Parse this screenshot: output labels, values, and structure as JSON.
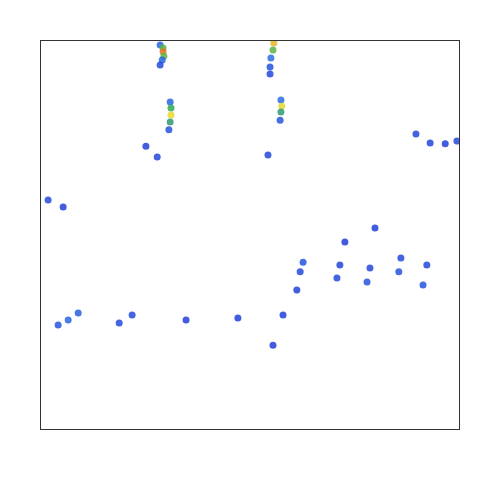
{
  "chart_data": {
    "type": "scatter",
    "x": [
      28.5,
      29.2,
      29.2,
      29.4,
      29.0,
      28.5,
      30.9,
      31.1,
      31.1,
      30.9,
      30.6,
      55.7,
      55.5,
      55.0,
      54.8,
      54.8,
      57.4,
      57.6,
      57.4,
      57.2,
      54.3,
      27.8,
      25.1,
      1.7,
      5.3,
      89.7,
      93.1,
      96.7,
      99.5,
      62.7,
      62.0,
      61.2,
      71.5,
      70.8,
      78.7,
      78.0,
      86.1,
      85.6,
      92.3,
      91.4,
      72.7,
      79.9,
      4.1,
      6.5,
      8.9,
      18.7,
      21.8,
      34.7,
      47.1,
      57.9,
      55.5
    ],
    "y": [
      99.0,
      98.2,
      97.2,
      96.1,
      95.1,
      93.8,
      84.3,
      82.7,
      80.9,
      79.1,
      77.1,
      99.5,
      97.7,
      95.6,
      93.3,
      91.5,
      84.8,
      83.2,
      81.7,
      79.6,
      70.6,
      70.1,
      72.9,
      59.0,
      57.2,
      76.0,
      73.7,
      73.5,
      74.2,
      43.0,
      40.5,
      35.8,
      42.3,
      38.9,
      41.5,
      37.9,
      44.1,
      40.5,
      42.3,
      37.1,
      48.2,
      51.8,
      26.8,
      28.1,
      29.9,
      27.3,
      29.4,
      28.1,
      28.6,
      29.4,
      21.6
    ],
    "values": [
      0.3,
      0.6,
      0.9,
      0.6,
      0.3,
      0.15,
      0.3,
      0.55,
      0.75,
      0.5,
      0.2,
      0.8,
      0.6,
      0.35,
      0.2,
      0.12,
      0.35,
      0.75,
      0.5,
      0.2,
      0.12,
      0.12,
      0.1,
      0.15,
      0.08,
      0.12,
      0.12,
      0.1,
      0.15,
      0.2,
      0.15,
      0.1,
      0.12,
      0.15,
      0.15,
      0.2,
      0.15,
      0.2,
      0.15,
      0.2,
      0.08,
      0.08,
      0.2,
      0.3,
      0.25,
      0.15,
      0.15,
      0.08,
      0.1,
      0.1,
      0.08
    ],
    "zlim": [
      0,
      1
    ],
    "xlim": [
      0,
      100
    ],
    "ylim": [
      0,
      100
    ],
    "tick_labels": false,
    "grid": false,
    "marker": "circle"
  }
}
